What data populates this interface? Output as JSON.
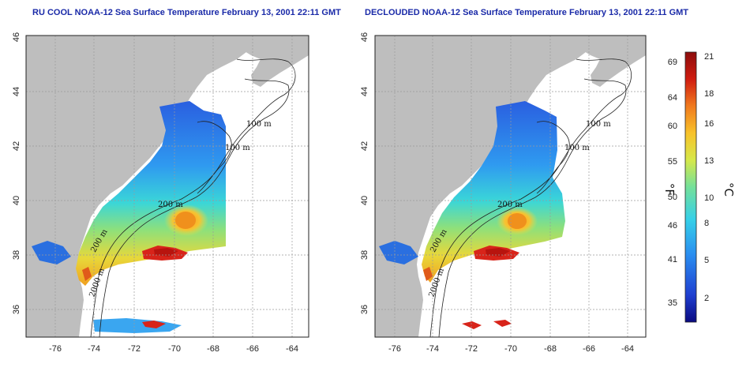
{
  "panels": [
    {
      "title": "RU COOL NOAA-12 Sea Surface Temperature February 13, 2001 22:11 GMT",
      "contour_labels": [
        "100 m",
        "100 m",
        "200 m",
        "200 m",
        "2000 m"
      ]
    },
    {
      "title": "DECLOUDED NOAA-12 Sea Surface Temperature February 13, 2001 22:11 GMT",
      "contour_labels": [
        "100 m",
        "100 m",
        "200 m",
        "200 m",
        "2000 m"
      ]
    }
  ],
  "map_axes": {
    "x_ticks": [
      "-76",
      "-74",
      "-72",
      "-70",
      "-68",
      "-66",
      "-64"
    ],
    "y_ticks": [
      "36",
      "38",
      "40",
      "42",
      "44",
      "46"
    ],
    "lon_range": [
      -77.0,
      -63.0
    ],
    "lat_range": [
      35.0,
      46.0
    ]
  },
  "colorbar": {
    "fahrenheit_label": "°F",
    "celsius_label": "°C",
    "fahrenheit_ticks": [
      "35",
      "41",
      "46",
      "50",
      "55",
      "60",
      "64",
      "69"
    ],
    "celsius_ticks": [
      "2",
      "5",
      "8",
      "10",
      "13",
      "16",
      "18",
      "21"
    ],
    "celsius_range": [
      0,
      22
    ],
    "colors": [
      "#0a0a80",
      "#1f3fd0",
      "#2a8ef0",
      "#36d0e8",
      "#74e09a",
      "#d6e84a",
      "#f8c22a",
      "#f07a1e",
      "#d01c10",
      "#8c0c0c"
    ]
  },
  "colors": {
    "land": "#bebebe",
    "title": "#1a2aa8"
  }
}
